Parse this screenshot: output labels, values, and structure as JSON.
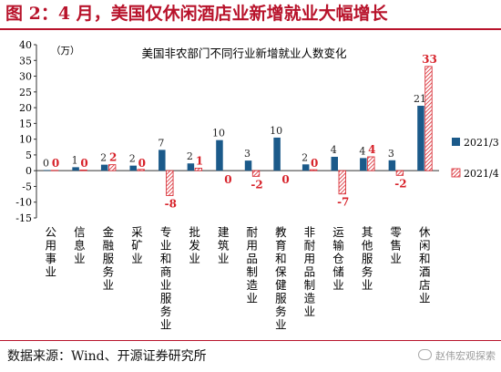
{
  "figure": {
    "title": "图 2：4 月，美国仅休闲酒店业新增就业大幅增长",
    "source": "数据来源：Wind、开源证券研究所",
    "watermark": "赵伟宏观探索",
    "watermark_icon": "chat-bubble-icon",
    "accent_color": "#b8132b"
  },
  "chart_data": {
    "type": "bar",
    "title": "美国非农部门不同行业新增就业人数变化",
    "ylabel": "（万）",
    "xlabel": "",
    "ylim": [
      -15,
      40
    ],
    "yticks": [
      -15,
      -10,
      -5,
      0,
      5,
      10,
      15,
      20,
      25,
      30,
      35,
      40
    ],
    "grid": false,
    "legend_position": "right",
    "categories": [
      "公用事业",
      "信息业",
      "金融服务业",
      "采矿业",
      "专业和商业服务业",
      "批发业",
      "建筑业",
      "耐用品制造业",
      "教育和保健服务业",
      "非耐用品制造业",
      "运输仓储业",
      "其他服务业",
      "零售业",
      "休闲和酒店业"
    ],
    "series": [
      {
        "name": "2021/3",
        "color": "#1b5a8a",
        "fill": "solid",
        "values": [
          0.2,
          1.1,
          1.9,
          1.6,
          6.6,
          2.3,
          9.7,
          3.2,
          10.5,
          2.0,
          4.4,
          4.0,
          3.3,
          20.6
        ],
        "labels": [
          "0",
          "1",
          "2",
          "2",
          "7",
          "2",
          "10",
          "3",
          "10",
          "2",
          "4",
          "4",
          "3",
          "21"
        ]
      },
      {
        "name": "2021/4",
        "color": "#d7222a",
        "fill": "hatched",
        "values": [
          0.1,
          0.2,
          1.9,
          0.4,
          -7.9,
          0.8,
          0.0,
          -1.8,
          0.0,
          0.3,
          -7.4,
          4.4,
          -1.5,
          33.1
        ],
        "labels": [
          "0",
          "0",
          "2",
          "0",
          "-8",
          "1",
          "0",
          "-2",
          "0",
          "0",
          "-7",
          "4",
          "-2",
          "33"
        ]
      }
    ]
  }
}
